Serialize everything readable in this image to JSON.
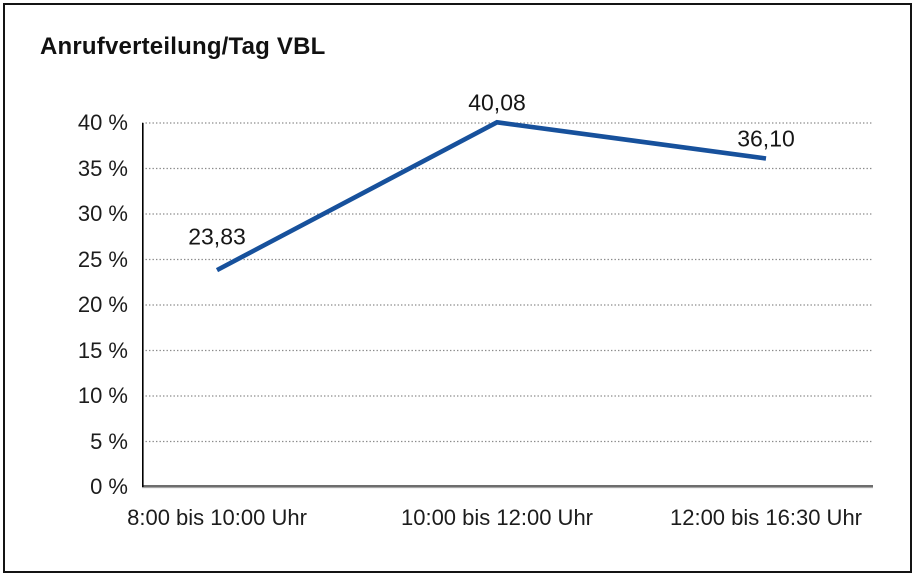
{
  "title": "Anrufverteilung/Tag VBL",
  "chart_data": {
    "type": "line",
    "title": "Anrufverteilung/Tag VBL",
    "categories": [
      "8:00 bis 10:00 Uhr",
      "10:00 bis 12:00 Uhr",
      "12:00 bis 16:30 Uhr"
    ],
    "values": [
      23.83,
      40.08,
      36.1
    ],
    "point_labels": [
      "23,83",
      "40,08",
      "36,10"
    ],
    "y_tick_labels": [
      "40 %",
      "35 %",
      "30 %",
      "25 %",
      "20 %",
      "15 %",
      "10 %",
      "5 %",
      "0 %"
    ],
    "ylim": [
      0,
      40
    ],
    "y_tick_step": 5,
    "xlabel": "",
    "ylabel": "",
    "grid": "horizontal-dotted",
    "legend": "none",
    "line_color": "#17519C",
    "axis_color": "#000000",
    "gridline_color": "#8a8a8a"
  }
}
